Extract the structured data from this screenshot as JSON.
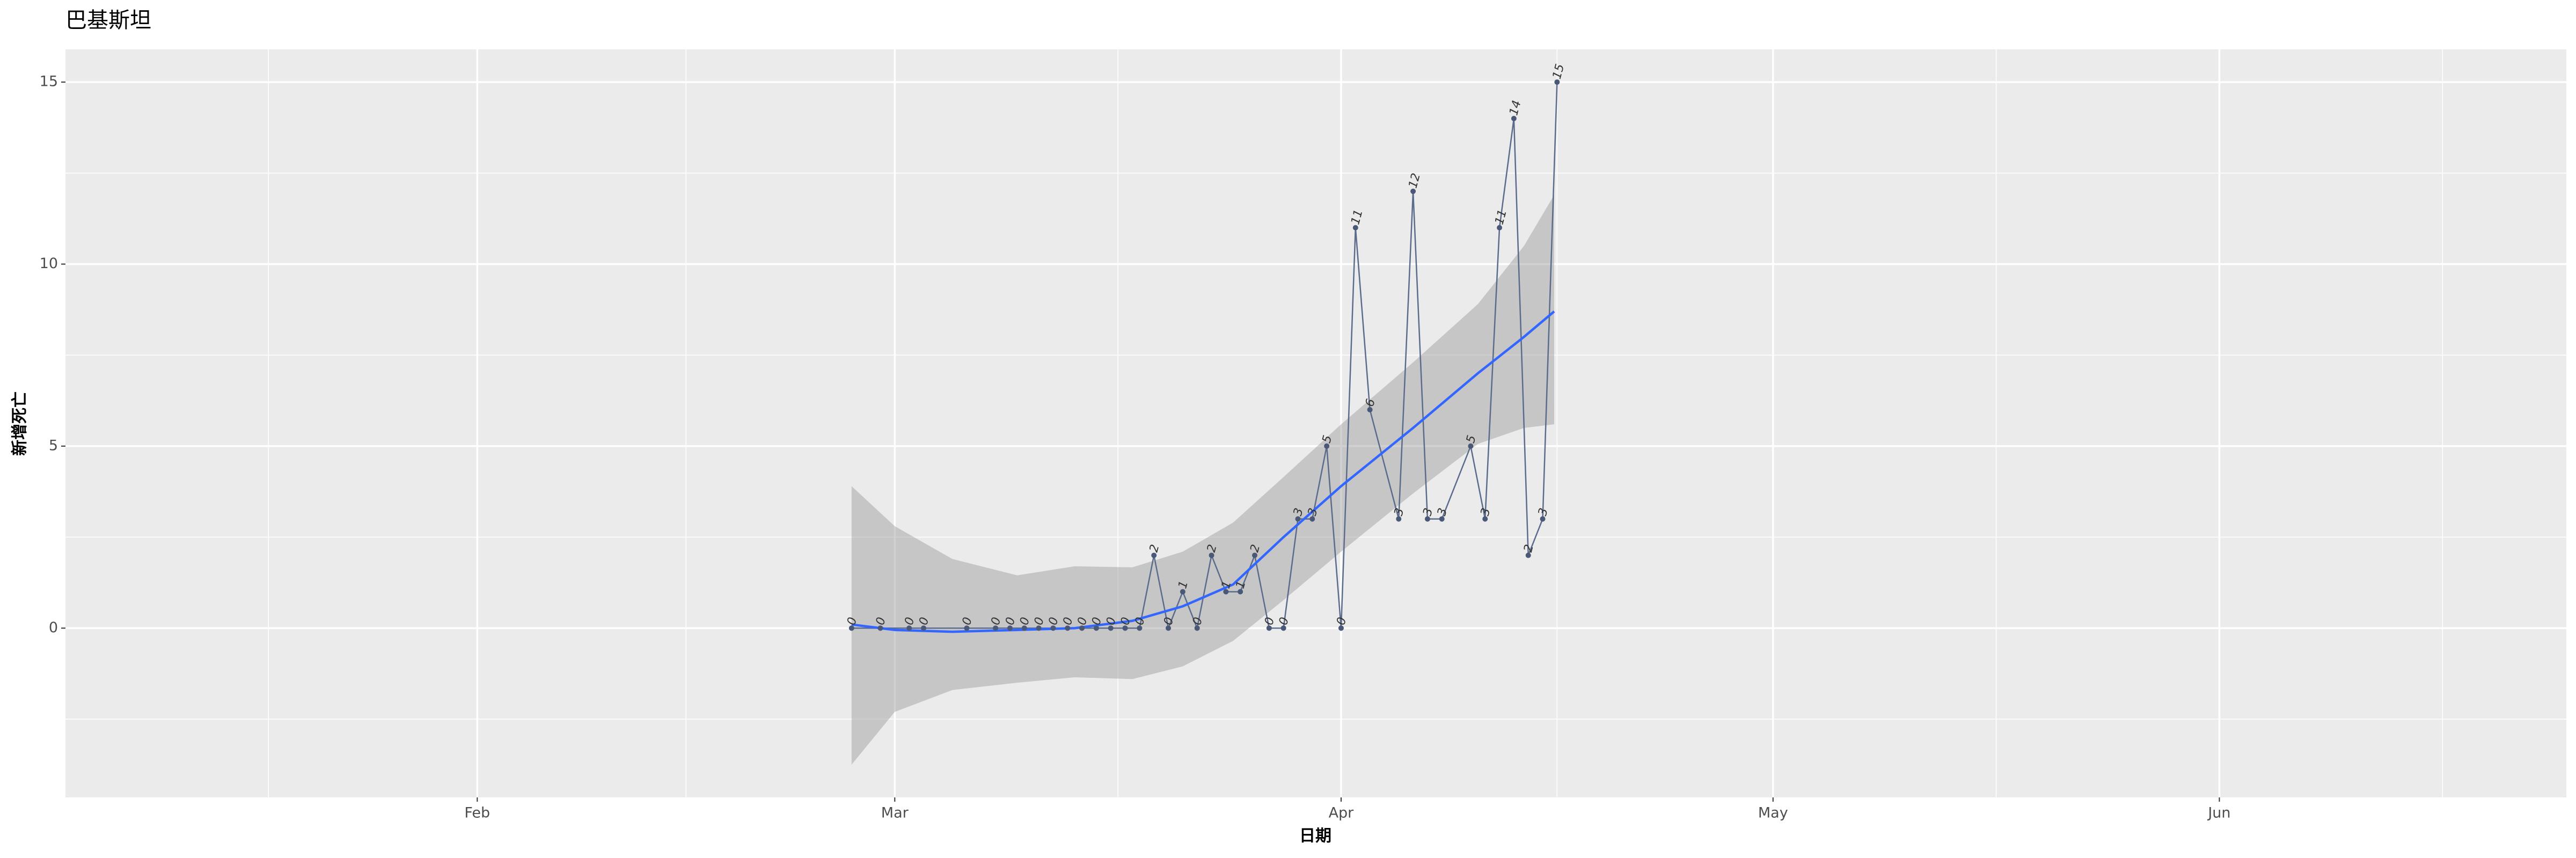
{
  "chart_data": {
    "type": "line",
    "title": "巴基斯坦",
    "x_label": "日期",
    "y_label": "新增死亡",
    "x": [
      58,
      60,
      62,
      63,
      66,
      68,
      69,
      70,
      71,
      72,
      73,
      74,
      75,
      76,
      77,
      78,
      79,
      80,
      81,
      82,
      83,
      84,
      85,
      86,
      87,
      88,
      89,
      90,
      91,
      92,
      93,
      94,
      96,
      97,
      98,
      99,
      101,
      102,
      103,
      104,
      105,
      106,
      107
    ],
    "series": [
      {
        "color": "#5b6b8c",
        "values": [
          0,
          0,
          0,
          0,
          0,
          0,
          0,
          0,
          0,
          0,
          0,
          0,
          0,
          0,
          0,
          0,
          2,
          0,
          1,
          0,
          2,
          1,
          1,
          2,
          0,
          0,
          3,
          3,
          5,
          0,
          11,
          6,
          3,
          12,
          3,
          3,
          5,
          3,
          11,
          14,
          2,
          3,
          15
        ]
      }
    ],
    "smooth": {
      "color": "#3366ff",
      "band_color": "#999999",
      "x": [
        58,
        61,
        65,
        69.5,
        73.5,
        77.5,
        81,
        84.5,
        88,
        92,
        97,
        101.5,
        104.7,
        106.8
      ],
      "values": [
        0.1,
        -0.05,
        -0.1,
        -0.05,
        0,
        0.2,
        0.6,
        1.2,
        2.5,
        3.9,
        5.5,
        7.0,
        8.0,
        8.7
      ],
      "lower": [
        -3.75,
        -2.3,
        -1.7,
        -1.5,
        -1.35,
        -1.4,
        -1.05,
        -0.35,
        0.77,
        2.1,
        3.7,
        5.06,
        5.5,
        5.6
      ],
      "upper": [
        3.9,
        2.8,
        1.9,
        1.45,
        1.7,
        1.67,
        2.1,
        2.9,
        4.15,
        5.6,
        7.3,
        8.9,
        10.5,
        11.9
      ]
    },
    "xlim": [
      3.4,
      177.1
    ],
    "xticks": [
      {
        "value": 32,
        "label": "Feb"
      },
      {
        "value": 61,
        "label": "Mar"
      },
      {
        "value": 92,
        "label": "Apr"
      },
      {
        "value": 122,
        "label": "May"
      },
      {
        "value": 153,
        "label": "Jun"
      }
    ],
    "ylim": [
      -4.65,
      15.9
    ],
    "yticks": [
      0,
      5,
      10,
      15
    ],
    "grid": true
  }
}
